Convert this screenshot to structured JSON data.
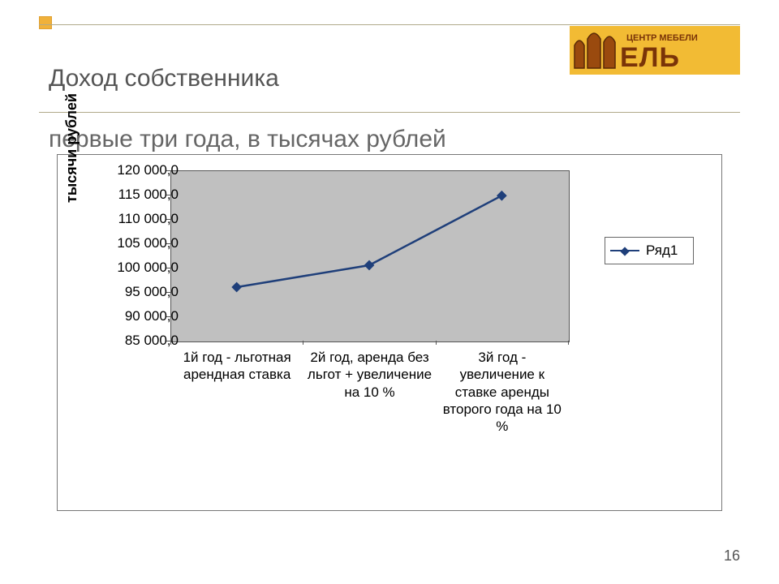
{
  "title_line1": "Доход собственника",
  "title_line2": "первые три года, в тысячах рублей",
  "page_number": "16",
  "logo": {
    "bg": "#f2bb34",
    "bar_color": "#9a4a0e",
    "stroke": "#5a2a06",
    "top_text": "ЦЕНТР МЕБЕЛИ",
    "main_text": "ЕЛЬ",
    "text_color": "#7a3408"
  },
  "chart": {
    "type": "line",
    "ylabel": "тысячи рублей",
    "ylim": [
      85000,
      120000
    ],
    "ytick_step": 5000,
    "ytick_labels": [
      "85 000,0",
      "90 000,0",
      "95 000,0",
      "100 000,0",
      "105 000,0",
      "110 000,0",
      "115 000,0",
      "120 000,0"
    ],
    "categories": [
      "1й год - льготная арендная ставка",
      "2й год, аренда без льгот + увеличение на 10 %",
      "3й год - увеличение к ставке аренды второго года на 10 %"
    ],
    "values": [
      96000,
      100500,
      114800
    ],
    "series_label": "Ряд1",
    "line_color": "#1f3f7a",
    "line_width": 2.5,
    "marker": "diamond",
    "marker_size": 9,
    "marker_color": "#1f3f7a",
    "plot_bg": "#c0c0c0",
    "border_color": "#555555",
    "axis_fontsize": 17,
    "ylabel_fontsize": 18
  }
}
